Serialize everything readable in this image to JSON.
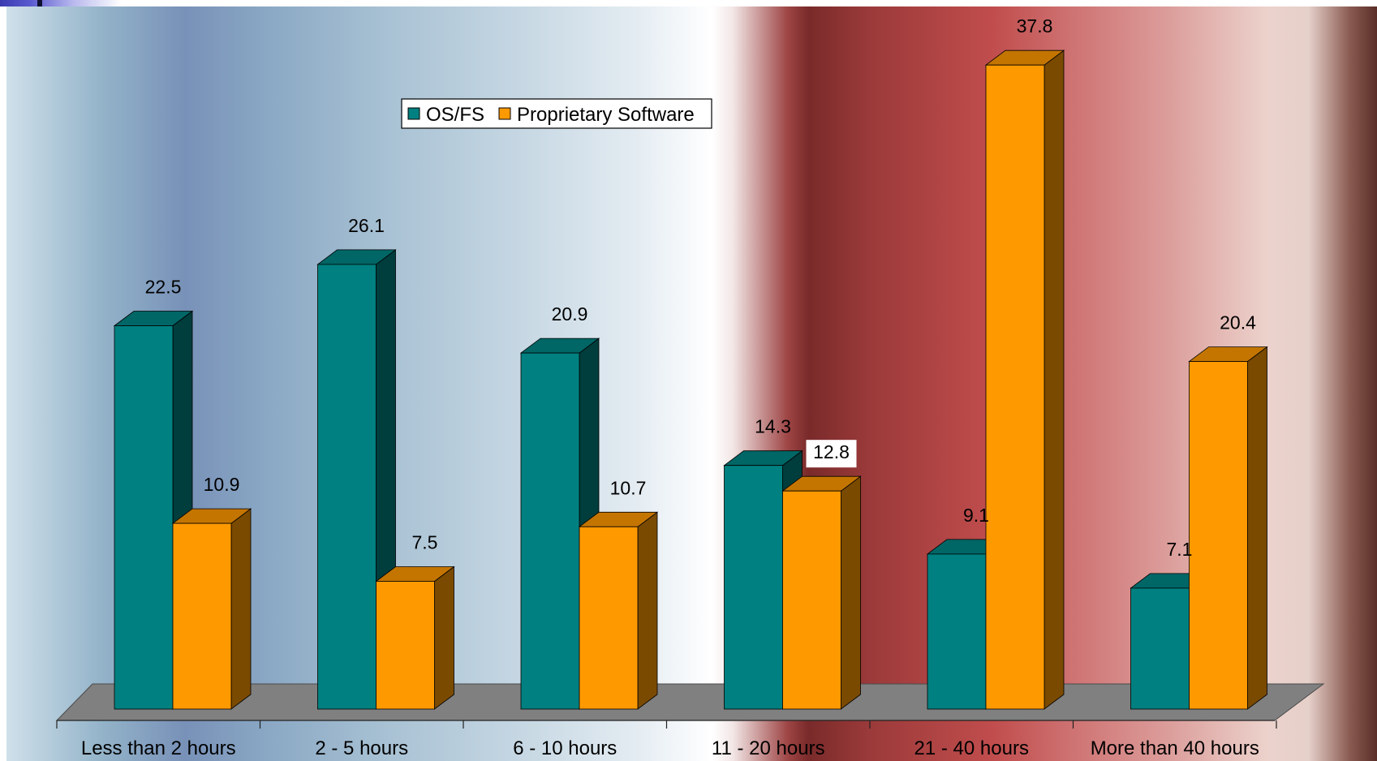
{
  "chart_data": {
    "type": "bar",
    "title": "",
    "xlabel": "",
    "ylabel": "",
    "ylim": [
      0,
      40
    ],
    "grid": false,
    "legend_position": "top-center",
    "categories": [
      "Less than 2 hours",
      "2 - 5 hours",
      "6 - 10 hours",
      "11 - 20 hours",
      "21 - 40 hours",
      "More than 40 hours"
    ],
    "series": [
      {
        "name": "OS/FS",
        "values": [
          22.5,
          26.1,
          20.9,
          14.3,
          9.1,
          7.1
        ],
        "color": "#008080",
        "top_color": "#006666",
        "side_color": "#003d3d"
      },
      {
        "name": "Proprietary Software",
        "values": [
          10.9,
          7.5,
          10.7,
          12.8,
          37.8,
          20.4
        ],
        "color": "#ff9900",
        "top_color": "#c47500",
        "side_color": "#7a4a00"
      }
    ],
    "data_labels": {
      "series_0": [
        "22.5",
        "26.1",
        "20.9",
        "14.3",
        "9.1",
        "7.1"
      ],
      "series_1": [
        "10.9",
        "7.5",
        "10.7",
        "12.8",
        "37.8",
        "20.4"
      ]
    }
  }
}
